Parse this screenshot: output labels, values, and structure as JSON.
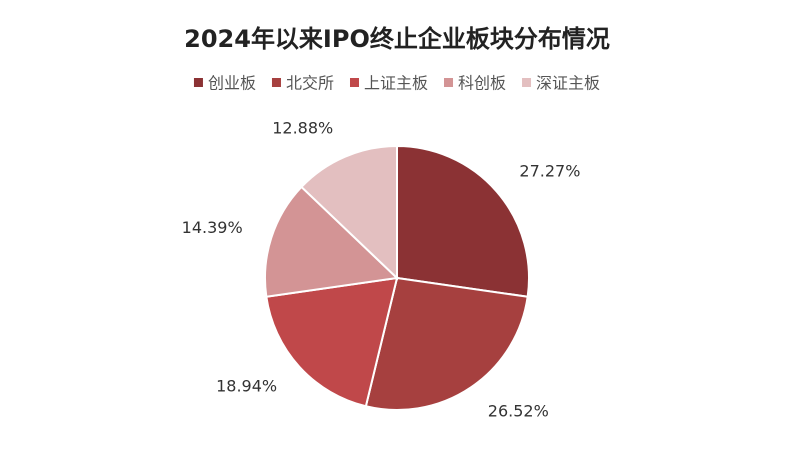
{
  "chart_data": {
    "type": "pie",
    "title": "2024年以来IPO终止企业板块分布情况",
    "categories": [
      "创业板",
      "北交所",
      "上证主板",
      "科创板",
      "深证主板"
    ],
    "values": [
      27.27,
      26.52,
      18.94,
      14.39,
      12.88
    ],
    "value_labels": [
      "27.27%",
      "26.52%",
      "18.94%",
      "14.39%",
      "12.88%"
    ],
    "colors": [
      "#8b3234",
      "#a6403f",
      "#c0484a",
      "#d39495",
      "#e3bfc0"
    ],
    "legend": "top"
  }
}
